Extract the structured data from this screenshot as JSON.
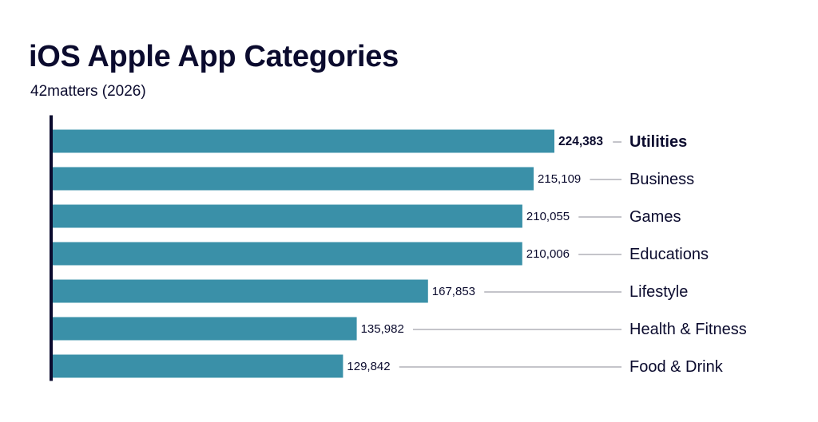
{
  "chart_data": {
    "type": "bar",
    "orientation": "horizontal",
    "title": "iOS Apple App Categories",
    "subtitle": "42matters (2026)",
    "categories": [
      "Utilities",
      "Business",
      "Games",
      "Educations",
      "Lifestyle",
      "Health & Fitness",
      "Food & Drink"
    ],
    "values": [
      224383,
      215109,
      210055,
      210006,
      167853,
      135982,
      129842
    ],
    "value_labels": [
      "224,383",
      "215,109",
      "210,055",
      "210,006",
      "167,853",
      "135,982",
      "129,842"
    ],
    "highlighted_category": "Utilities",
    "xlim": [
      0,
      224383
    ],
    "grid": false,
    "legend": "none",
    "bar_color": "#3a90a8",
    "axis_color": "#0b0b2e",
    "text_color": "#0b0b2e",
    "leader_color": "#8a8a96"
  }
}
